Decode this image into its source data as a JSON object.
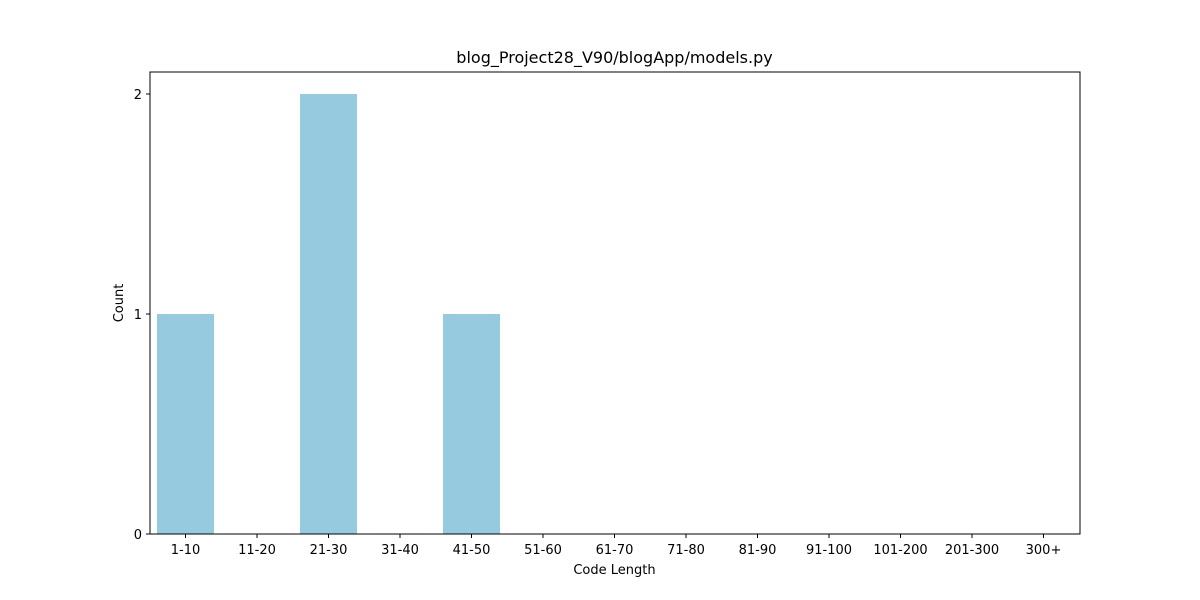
{
  "chart_data": {
    "type": "bar",
    "title": "blog_Project28_V90/blogApp/models.py",
    "xlabel": "Code Length",
    "ylabel": "Count",
    "categories": [
      "1-10",
      "11-20",
      "21-30",
      "31-40",
      "41-50",
      "51-60",
      "61-70",
      "71-80",
      "81-90",
      "91-100",
      "101-200",
      "201-300",
      "300+"
    ],
    "values": [
      1,
      0,
      2,
      0,
      1,
      0,
      0,
      0,
      0,
      0,
      0,
      0,
      0
    ],
    "yticks": [
      0,
      1,
      2
    ],
    "ylim": [
      0,
      2.1
    ],
    "bar_color": "#96cadf",
    "grid": false,
    "legend": "none"
  }
}
